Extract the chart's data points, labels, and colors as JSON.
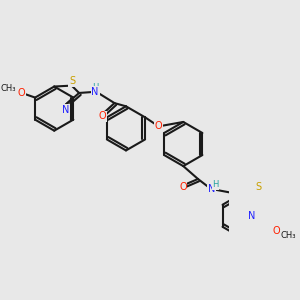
{
  "bg": "#e8e8e8",
  "bond_color": "#1a1a1a",
  "lw": 1.5,
  "atom_colors": {
    "N": "#2020ff",
    "O": "#ff2000",
    "S": "#c8a000",
    "H": "#20a0a0"
  },
  "fs": 7.0,
  "fs_small": 6.0
}
